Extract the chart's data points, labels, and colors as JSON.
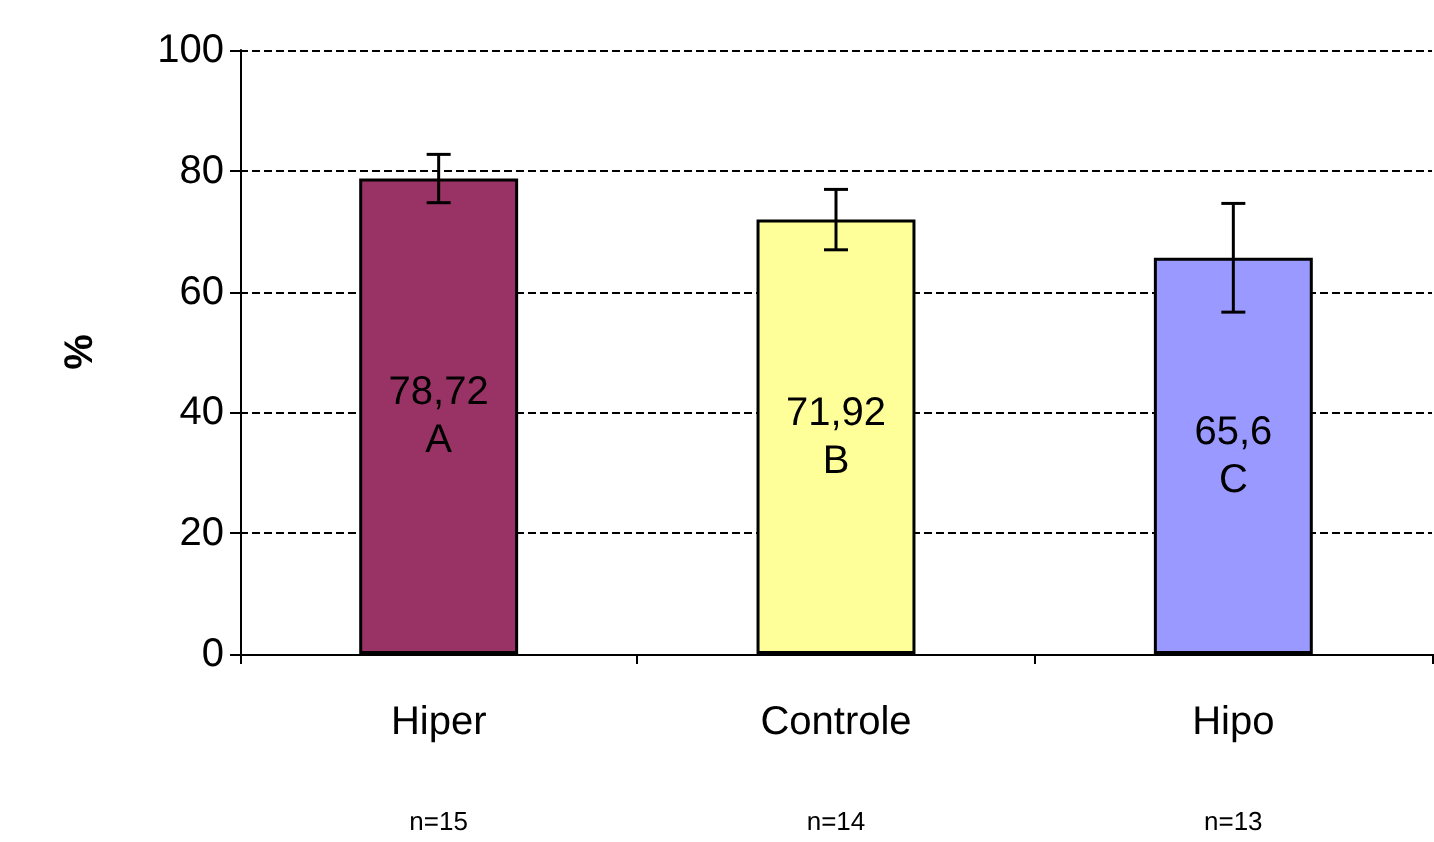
{
  "chart_data": {
    "type": "bar",
    "ylabel": "%",
    "categories": [
      "Hiper",
      "Controle",
      "Hipo"
    ],
    "values": [
      78.72,
      71.92,
      65.6
    ],
    "colors": [
      "#993366",
      "#ffff99",
      "#9999ff"
    ],
    "errors": [
      4,
      5,
      9
    ],
    "value_labels": [
      "78,72\nA",
      "71,92\nB",
      "65,6\nC"
    ],
    "annotations": [
      "n=15",
      "n=14",
      "n=13"
    ],
    "ylim": [
      0,
      100
    ],
    "yticks": [
      0,
      20,
      40,
      60,
      80,
      100
    ],
    "grid": "y"
  }
}
